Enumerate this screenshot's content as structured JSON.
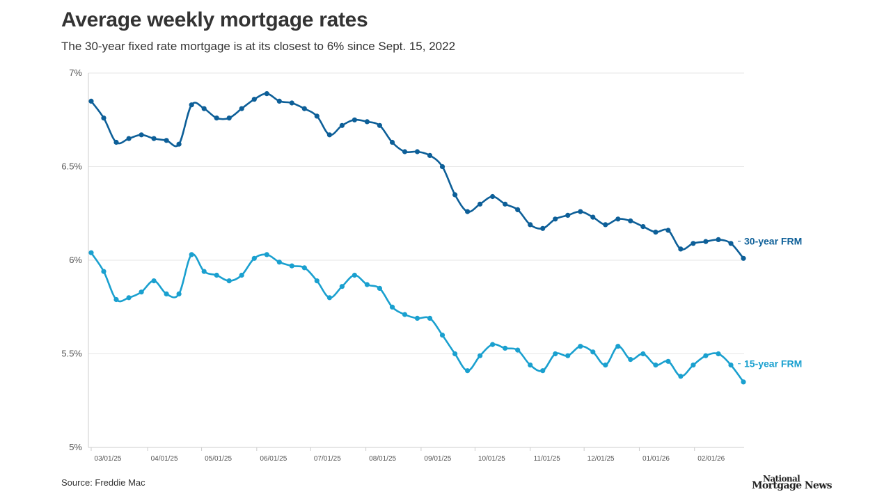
{
  "title": "Average weekly mortgage rates",
  "subtitle": "The 30-year fixed rate mortgage is at its closest to 6% since Sept. 15, 2022",
  "source": "Source: Freddie Mac",
  "logo": {
    "line1": "National",
    "line2": "Mortgage News"
  },
  "colors": {
    "series_30": "#0d5f98",
    "series_15": "#1aa0cf",
    "grid": "#e6e6e6",
    "axis": "#cccccc",
    "text": "#333333"
  },
  "chart_data": {
    "type": "line",
    "ylim": [
      5,
      7
    ],
    "y_ticks": [
      {
        "value": 5,
        "label": "5%"
      },
      {
        "value": 5.5,
        "label": "5.5%"
      },
      {
        "value": 6,
        "label": "6%"
      },
      {
        "value": 6.5,
        "label": "6.5%"
      },
      {
        "value": 7,
        "label": "7%"
      }
    ],
    "x_ticks": [
      {
        "week": 1,
        "label": "03/01/25"
      },
      {
        "week": 5.5,
        "label": "04/01/25"
      },
      {
        "week": 9.8,
        "label": "05/01/25"
      },
      {
        "week": 14.2,
        "label": "06/01/25"
      },
      {
        "week": 18.5,
        "label": "07/01/25"
      },
      {
        "week": 22.9,
        "label": "08/01/25"
      },
      {
        "week": 27.3,
        "label": "09/01/25"
      },
      {
        "week": 31.6,
        "label": "10/01/25"
      },
      {
        "week": 36,
        "label": "11/01/25"
      },
      {
        "week": 40.3,
        "label": "12/01/25"
      },
      {
        "week": 44.7,
        "label": "01/01/26"
      },
      {
        "week": 49.1,
        "label": "02/01/26"
      }
    ],
    "series": [
      {
        "name": "30-year FRM",
        "values": [
          6.85,
          6.76,
          6.63,
          6.65,
          6.67,
          6.65,
          6.64,
          6.62,
          6.83,
          6.81,
          6.76,
          6.76,
          6.81,
          6.86,
          6.89,
          6.85,
          6.84,
          6.81,
          6.77,
          6.67,
          6.72,
          6.75,
          6.74,
          6.72,
          6.63,
          6.58,
          6.58,
          6.56,
          6.5,
          6.35,
          6.26,
          6.3,
          6.34,
          6.3,
          6.27,
          6.19,
          6.17,
          6.22,
          6.24,
          6.26,
          6.23,
          6.19,
          6.22,
          6.21,
          6.18,
          6.15,
          6.16,
          6.06,
          6.09,
          6.1,
          6.11,
          6.09,
          6.01
        ]
      },
      {
        "name": "15-year FRM",
        "values": [
          6.04,
          5.94,
          5.79,
          5.8,
          5.83,
          5.89,
          5.82,
          5.82,
          6.03,
          5.94,
          5.92,
          5.89,
          5.92,
          6.01,
          6.03,
          5.99,
          5.97,
          5.96,
          5.89,
          5.8,
          5.86,
          5.92,
          5.87,
          5.85,
          5.75,
          5.71,
          5.69,
          5.69,
          5.6,
          5.5,
          5.41,
          5.49,
          5.55,
          5.53,
          5.52,
          5.44,
          5.41,
          5.5,
          5.49,
          5.54,
          5.51,
          5.44,
          5.54,
          5.47,
          5.5,
          5.44,
          5.46,
          5.38,
          5.44,
          5.49,
          5.5,
          5.44,
          5.35
        ]
      }
    ]
  }
}
